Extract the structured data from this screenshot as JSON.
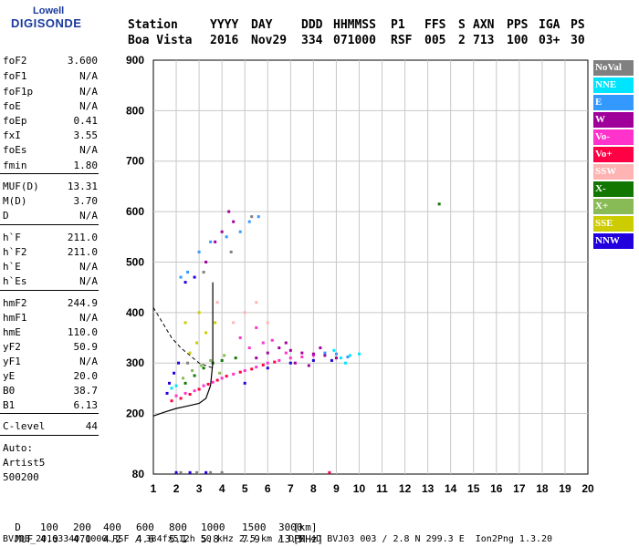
{
  "logo": {
    "line1": "Lowell",
    "line2": "DIGISONDE"
  },
  "header": {
    "labels": [
      "Station",
      "YYYY",
      "DAY",
      "DDD",
      "HHMMSS",
      "P1",
      "FFS",
      "S",
      "AXN",
      "PPS",
      "IGA",
      "PS"
    ],
    "values": [
      "Boa Vista",
      "2016",
      "Nov29",
      "334",
      "071000",
      "RSF",
      "005",
      "2",
      "713",
      "100",
      "03+",
      "30"
    ]
  },
  "params": [
    {
      "name": "foF2",
      "value": "3.600"
    },
    {
      "name": "foF1",
      "value": "N/A"
    },
    {
      "name": "foF1p",
      "value": "N/A"
    },
    {
      "name": "foE",
      "value": "N/A"
    },
    {
      "name": "foEp",
      "value": "0.41"
    },
    {
      "name": "fxI",
      "value": "3.55"
    },
    {
      "name": "foEs",
      "value": "N/A"
    },
    {
      "name": "fmin",
      "value": "1.80"
    },
    {
      "name": "MUF(D)",
      "value": "13.31"
    },
    {
      "name": "M(D)",
      "value": "3.70"
    },
    {
      "name": "D",
      "value": "N/A"
    },
    {
      "name": "h`F",
      "value": "211.0"
    },
    {
      "name": "h`F2",
      "value": "211.0"
    },
    {
      "name": "h`E",
      "value": "N/A"
    },
    {
      "name": "h`Es",
      "value": "N/A"
    },
    {
      "name": "hmF2",
      "value": "244.9"
    },
    {
      "name": "hmF1",
      "value": "N/A"
    },
    {
      "name": "hmE",
      "value": "110.0"
    },
    {
      "name": "yF2",
      "value": "50.9"
    },
    {
      "name": "yF1",
      "value": "N/A"
    },
    {
      "name": "yE",
      "value": "20.0"
    },
    {
      "name": "B0",
      "value": "38.7"
    },
    {
      "name": "B1",
      "value": "6.13"
    },
    {
      "name": "C-level",
      "value": "44"
    }
  ],
  "autoscaling": {
    "line1": "Auto:",
    "line2": "Artist5",
    "line3": "500200"
  },
  "legend": [
    {
      "label": "NoVal",
      "bg": "#808080",
      "fg": "#ffffff"
    },
    {
      "label": "NNE",
      "bg": "#00e5ff",
      "fg": "#ffffff"
    },
    {
      "label": "E",
      "bg": "#3399ff",
      "fg": "#ffffff"
    },
    {
      "label": "W",
      "bg": "#a0009a",
      "fg": "#ffffff"
    },
    {
      "label": "Vo-",
      "bg": "#ff33cc",
      "fg": "#ffffff"
    },
    {
      "label": "Vo+",
      "bg": "#ff0044",
      "fg": "#ffffff"
    },
    {
      "label": "SSW",
      "bg": "#ffb3b3",
      "fg": "#ffffff"
    },
    {
      "label": "X-",
      "bg": "#117700",
      "fg": "#ffffff"
    },
    {
      "label": "X+",
      "bg": "#88bb55",
      "fg": "#ffffff"
    },
    {
      "label": "SSE",
      "bg": "#cccc00",
      "fg": "#ffffff"
    },
    {
      "label": "NNW",
      "bg": "#2200dd",
      "fg": "#ffffff"
    }
  ],
  "footer": {
    "d_label": "D",
    "d_values": [
      "100",
      "200",
      "400",
      "600",
      "800",
      "1000",
      "1500",
      "3000"
    ],
    "d_unit": "[km]",
    "muf_label": "MUF",
    "muf_values": [
      "4.0",
      "4.0",
      "4.2",
      "4.6",
      "5.1",
      "5.8",
      "7.9",
      "13.3"
    ],
    "muf_unit": "[MHz]",
    "info": "BVJ03_2016334071000.RSF / 384fx512h 50 kHz 2.5 km / DPS-4D BVJ03 003 / 2.8 N 299.3 E  Ion2Png 1.3.20"
  },
  "chart_data": {
    "type": "scatter",
    "title": "",
    "xlabel": "",
    "ylabel": "",
    "xlim": [
      1,
      20
    ],
    "ylim": [
      80,
      900
    ],
    "x_ticks": [
      1,
      2,
      3,
      4,
      5,
      6,
      7,
      8,
      9,
      10,
      11,
      12,
      13,
      14,
      15,
      16,
      17,
      18,
      19,
      20
    ],
    "y_ticks": [
      80,
      200,
      300,
      400,
      500,
      600,
      700,
      800,
      900
    ],
    "grid": true,
    "legend_position": "right",
    "series": [
      {
        "name": "Vo-",
        "color": "#ff33cc",
        "points": [
          [
            2.0,
            235
          ],
          [
            2.4,
            240
          ],
          [
            2.8,
            245
          ],
          [
            3.2,
            255
          ],
          [
            3.6,
            262
          ],
          [
            4.0,
            270
          ],
          [
            4.5,
            278
          ],
          [
            5.0,
            285
          ],
          [
            5.5,
            292
          ],
          [
            6.0,
            300
          ],
          [
            6.5,
            305
          ],
          [
            7.0,
            310
          ],
          [
            7.5,
            312
          ],
          [
            8.0,
            315
          ],
          [
            5.2,
            330
          ],
          [
            5.8,
            340
          ],
          [
            6.2,
            345
          ],
          [
            6.8,
            320
          ],
          [
            4.8,
            350
          ],
          [
            5.5,
            370
          ]
        ]
      },
      {
        "name": "Vo+",
        "color": "#ff0044",
        "points": [
          [
            1.8,
            225
          ],
          [
            2.2,
            230
          ],
          [
            2.6,
            238
          ],
          [
            3.0,
            248
          ],
          [
            3.4,
            258
          ],
          [
            3.8,
            266
          ],
          [
            4.2,
            274
          ],
          [
            4.8,
            282
          ],
          [
            5.3,
            288
          ],
          [
            5.8,
            296
          ],
          [
            6.3,
            302
          ],
          [
            8.7,
            83
          ]
        ]
      },
      {
        "name": "W",
        "color": "#a0009a",
        "points": [
          [
            5.5,
            310
          ],
          [
            6.0,
            320
          ],
          [
            6.5,
            330
          ],
          [
            7.0,
            325
          ],
          [
            7.5,
            320
          ],
          [
            8.0,
            318
          ],
          [
            8.5,
            315
          ],
          [
            9.0,
            310
          ],
          [
            7.2,
            300
          ],
          [
            7.8,
            295
          ],
          [
            6.8,
            340
          ],
          [
            8.3,
            330
          ],
          [
            3.3,
            500
          ],
          [
            3.7,
            540
          ],
          [
            4.0,
            560
          ],
          [
            4.3,
            600
          ],
          [
            4.5,
            580
          ]
        ]
      },
      {
        "name": "NNW",
        "color": "#2200dd",
        "points": [
          [
            1.6,
            240
          ],
          [
            1.7,
            260
          ],
          [
            1.9,
            280
          ],
          [
            2.1,
            300
          ],
          [
            5.0,
            260
          ],
          [
            6.0,
            290
          ],
          [
            7.0,
            300
          ],
          [
            8.0,
            305
          ],
          [
            8.8,
            305
          ],
          [
            2.4,
            460
          ],
          [
            2.8,
            470
          ],
          [
            2.0,
            83
          ],
          [
            2.6,
            83
          ],
          [
            3.3,
            83
          ]
        ]
      },
      {
        "name": "NNE",
        "color": "#00e5ff",
        "points": [
          [
            9.2,
            310
          ],
          [
            9.6,
            315
          ],
          [
            10.0,
            318
          ],
          [
            8.9,
            325
          ],
          [
            9.4,
            300
          ],
          [
            1.8,
            250
          ],
          [
            2.0,
            255
          ]
        ]
      },
      {
        "name": "E",
        "color": "#3399ff",
        "points": [
          [
            8.5,
            320
          ],
          [
            9.0,
            318
          ],
          [
            9.5,
            312
          ],
          [
            3.0,
            520
          ],
          [
            3.5,
            540
          ],
          [
            4.2,
            550
          ],
          [
            4.8,
            560
          ],
          [
            5.2,
            580
          ],
          [
            5.6,
            590
          ],
          [
            2.5,
            480
          ],
          [
            2.2,
            470
          ]
        ]
      },
      {
        "name": "X-",
        "color": "#117700",
        "points": [
          [
            2.4,
            260
          ],
          [
            2.8,
            275
          ],
          [
            3.2,
            290
          ],
          [
            3.6,
            300
          ],
          [
            4.0,
            305
          ],
          [
            4.6,
            310
          ],
          [
            13.5,
            615
          ]
        ]
      },
      {
        "name": "X+",
        "color": "#88bb55",
        "points": [
          [
            2.3,
            270
          ],
          [
            2.7,
            285
          ],
          [
            3.1,
            295
          ],
          [
            3.5,
            305
          ],
          [
            4.1,
            315
          ],
          [
            3.9,
            280
          ]
        ]
      },
      {
        "name": "SSE",
        "color": "#cccc00",
        "points": [
          [
            2.6,
            320
          ],
          [
            2.9,
            340
          ],
          [
            3.3,
            360
          ],
          [
            3.7,
            380
          ],
          [
            2.4,
            380
          ],
          [
            3.0,
            400
          ]
        ]
      },
      {
        "name": "SSW",
        "color": "#ffb3b3",
        "points": [
          [
            4.5,
            380
          ],
          [
            5.0,
            400
          ],
          [
            5.5,
            420
          ],
          [
            6.0,
            380
          ],
          [
            3.8,
            420
          ]
        ]
      },
      {
        "name": "NoVal",
        "color": "#808080",
        "points": [
          [
            2.2,
            83
          ],
          [
            2.9,
            83
          ],
          [
            3.5,
            83
          ],
          [
            4.0,
            83
          ],
          [
            2.5,
            300
          ],
          [
            3.2,
            480
          ],
          [
            4.4,
            520
          ],
          [
            5.3,
            590
          ]
        ]
      }
    ],
    "profile_curve": [
      [
        1.0,
        195
      ],
      [
        1.5,
        203
      ],
      [
        2.0,
        210
      ],
      [
        2.5,
        215
      ],
      [
        3.0,
        220
      ],
      [
        3.3,
        230
      ],
      [
        3.5,
        255
      ],
      [
        3.6,
        300
      ],
      [
        3.6,
        460
      ]
    ],
    "dashed_curve": [
      [
        1.0,
        410
      ],
      [
        1.4,
        380
      ],
      [
        1.8,
        350
      ],
      [
        2.2,
        330
      ],
      [
        2.6,
        315
      ],
      [
        3.0,
        300
      ],
      [
        3.6,
        290
      ]
    ]
  }
}
